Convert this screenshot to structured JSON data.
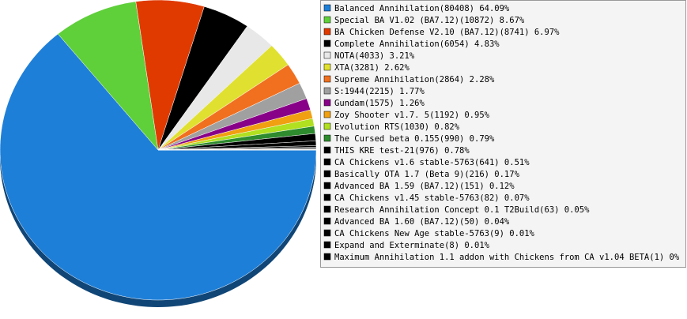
{
  "chart_data": {
    "type": "pie",
    "categories": [
      "Balanced Annihilation(80408) 64.09%",
      "Special BA V1.02 (BA7.12)(10872) 8.67%",
      "BA Chicken Defense V2.10 (BA7.12)(8741) 6.97%",
      "Complete Annihilation(6054) 4.83%",
      "NOTA(4033) 3.21%",
      "XTA(3281) 2.62%",
      "Supreme Annihilation(2864) 2.28%",
      "S:1944(2215) 1.77%",
      "Gundam(1575) 1.26%",
      "Zoy Shooter v1.7. 5(1192) 0.95%",
      "Evolution RTS(1030) 0.82%",
      "The Cursed beta 0.155(990) 0.79%",
      "THIS KRE test-21(976) 0.78%",
      "CA Chickens v1.6 stable-5763(641) 0.51%",
      "Basically OTA 1.7 (Beta 9)(216) 0.17%",
      "Advanced BA 1.59 (BA7.12)(151) 0.12%",
      "CA Chickens v1.45 stable-5763(82) 0.07%",
      "Research Annihilation Concept 0.1 T2Build(63) 0.05%",
      "Advanced BA 1.60 (BA7.12)(50) 0.04%",
      "CA Chickens New Age stable-5763(9) 0.01%",
      "Expand and Exterminate(8) 0.01%",
      "Maximum Annihilation 1.1 addon with Chickens from CA v1.04 BETA(1) 0%"
    ],
    "values": [
      64.09,
      8.67,
      6.97,
      4.83,
      3.21,
      2.62,
      2.28,
      1.77,
      1.26,
      0.95,
      0.82,
      0.79,
      0.78,
      0.51,
      0.17,
      0.12,
      0.07,
      0.05,
      0.04,
      0.01,
      0.01,
      0
    ],
    "colors": [
      "#1e7fd8",
      "#5fcf3a",
      "#e03a00",
      "#000000",
      "#e8e8e8",
      "#e0e030",
      "#f07020",
      "#a0a0a0",
      "#880088",
      "#f0a010",
      "#b0e020",
      "#2e8b2e",
      "#000000",
      "#000000",
      "#000000",
      "#000000",
      "#000000",
      "#000000",
      "#000000",
      "#000000",
      "#000000",
      "#000000"
    ],
    "legend": "right"
  }
}
